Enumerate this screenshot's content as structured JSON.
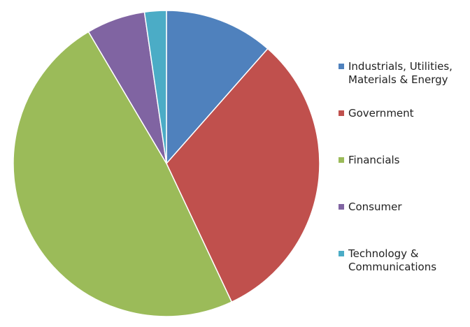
{
  "chart_data": {
    "type": "pie",
    "title": "",
    "start_angle_deg": 0,
    "direction": "clockwise",
    "legend_position": "right",
    "slices": [
      {
        "label": "Industrials, Utilities,\nMaterials & Energy",
        "value": 11.5,
        "color": "#4f81bd"
      },
      {
        "label": "Government",
        "value": 31.5,
        "color": "#c0504d"
      },
      {
        "label": "Financials",
        "value": 48.5,
        "color": "#9bbb59"
      },
      {
        "label": "Consumer",
        "value": 6.2,
        "color": "#8064a2"
      },
      {
        "label": "Technology &\nCommunications",
        "value": 2.3,
        "color": "#4bacc6"
      }
    ]
  }
}
